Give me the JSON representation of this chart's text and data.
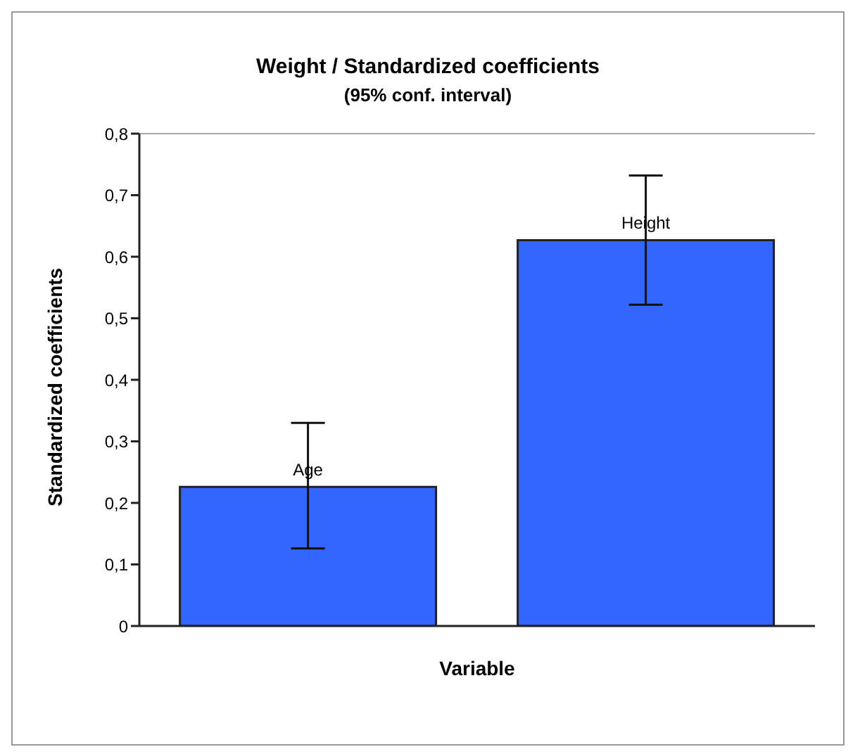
{
  "chart_data": {
    "type": "bar",
    "title": "Weight / Standardized coefficients",
    "subtitle": "(95% conf. interval)",
    "xlabel": "Variable",
    "ylabel": "Standardized coefficients",
    "categories": [
      "Age",
      "Height"
    ],
    "values": [
      0.226,
      0.627
    ],
    "color": "#3366ff",
    "errors": [
      [
        0.126,
        0.33
      ],
      [
        0.522,
        0.732
      ]
    ],
    "ylim": [
      0,
      0.8
    ],
    "yticks": [
      0,
      {
        "value": 0.1,
        "label": "0,1"
      },
      {
        "value": 0.2,
        "label": "0,2"
      },
      {
        "value": 0.3,
        "label": "0,3"
      },
      {
        "value": 0.4,
        "label": "0,4"
      },
      {
        "value": 0.5,
        "label": "0,5"
      },
      {
        "value": 0.6,
        "label": "0,6"
      },
      {
        "value": 0.7,
        "label": "0,7"
      },
      {
        "value": 0.8,
        "label": "0,8"
      }
    ],
    "tick_labels": "y",
    "grid": false,
    "legend": false
  }
}
